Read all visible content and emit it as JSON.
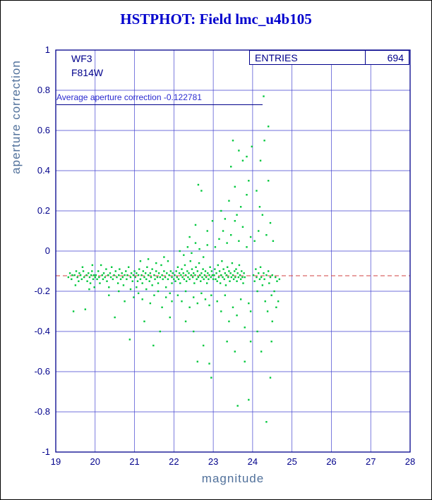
{
  "title": "HSTPHOT: Field lmc_u4b105",
  "colors": {
    "title": "#0000cd",
    "frame": "#00008b",
    "grid": "#4343cf",
    "points": "#00c83c",
    "refline": "#d04040",
    "axis_label": "#51719b",
    "tick_label": "#00008b"
  },
  "chart_data": {
    "type": "scatter",
    "title": "HSTPHOT: Field lmc_u4b105",
    "xlabel": "magnitude",
    "ylabel": "aperture correction",
    "xlim": [
      19,
      28
    ],
    "ylim": [
      -1,
      1
    ],
    "grid": true,
    "x_tick_values": [
      19,
      20,
      21,
      22,
      23,
      24,
      25,
      26,
      27,
      28
    ],
    "x_tick_labels": [
      "19",
      "20",
      "21",
      "22",
      "23",
      "24",
      "25",
      "26",
      "27",
      "28"
    ],
    "y_tick_values": [
      1,
      0.8,
      0.6,
      0.4,
      0.2,
      0,
      -0.2,
      -0.4,
      -0.6,
      -0.8,
      -1
    ],
    "y_tick_labels": [
      "1",
      "0.8",
      "0.6",
      "0.4",
      "0.2",
      "0",
      "-0.2",
      "-0.4",
      "-0.6",
      "-0.8",
      "-1"
    ],
    "chip_label": "WF3",
    "filter_label": "F814W",
    "average_text": "Average aperture correction -0.122781",
    "entries": {
      "label": "ENTRIES",
      "value": "694"
    },
    "reference_line_y": -0.122781,
    "points": [
      [
        19.32,
        -0.13
      ],
      [
        19.36,
        -0.11
      ],
      [
        19.4,
        -0.14
      ],
      [
        19.42,
        -0.12
      ],
      [
        19.45,
        -0.3
      ],
      [
        19.48,
        -0.12
      ],
      [
        19.52,
        -0.1
      ],
      [
        19.55,
        -0.13
      ],
      [
        19.58,
        -0.15
      ],
      [
        19.6,
        -0.11
      ],
      [
        19.63,
        -0.12
      ],
      [
        19.66,
        -0.14
      ],
      [
        19.7,
        -0.1
      ],
      [
        19.72,
        -0.13
      ],
      [
        19.75,
        -0.29
      ],
      [
        19.78,
        -0.12
      ],
      [
        19.8,
        -0.15
      ],
      [
        19.83,
        -0.11
      ],
      [
        19.86,
        -0.13
      ],
      [
        19.88,
        -0.16
      ],
      [
        19.9,
        -0.12
      ],
      [
        19.92,
        -0.1
      ],
      [
        19.95,
        -0.14
      ],
      [
        19.97,
        -0.12
      ],
      [
        20.0,
        -0.13
      ],
      [
        19.5,
        -0.17
      ],
      [
        19.68,
        -0.08
      ],
      [
        19.85,
        -0.19
      ],
      [
        19.93,
        -0.07
      ],
      [
        19.98,
        -0.18
      ],
      [
        20.02,
        -0.12
      ],
      [
        20.05,
        -0.14
      ],
      [
        20.08,
        -0.1
      ],
      [
        20.1,
        -0.13
      ],
      [
        20.12,
        -0.16
      ],
      [
        20.15,
        -0.07
      ],
      [
        20.18,
        -0.12
      ],
      [
        20.2,
        -0.14
      ],
      [
        20.22,
        -0.11
      ],
      [
        20.25,
        -0.13
      ],
      [
        20.28,
        -0.09
      ],
      [
        20.3,
        -0.15
      ],
      [
        20.33,
        -0.12
      ],
      [
        20.35,
        -0.18
      ],
      [
        20.38,
        -0.11
      ],
      [
        20.4,
        -0.13
      ],
      [
        20.42,
        -0.08
      ],
      [
        20.45,
        -0.14
      ],
      [
        20.48,
        -0.12
      ],
      [
        20.5,
        -0.33
      ],
      [
        20.52,
        -0.1
      ],
      [
        20.55,
        -0.13
      ],
      [
        20.58,
        -0.16
      ],
      [
        20.6,
        -0.12
      ],
      [
        20.62,
        -0.09
      ],
      [
        20.65,
        -0.14
      ],
      [
        20.68,
        -0.11
      ],
      [
        20.7,
        -0.13
      ],
      [
        20.72,
        -0.17
      ],
      [
        20.75,
        -0.12
      ],
      [
        20.78,
        -0.1
      ],
      [
        20.8,
        -0.14
      ],
      [
        20.82,
        -0.12
      ],
      [
        20.85,
        -0.08
      ],
      [
        20.88,
        -0.44
      ],
      [
        20.9,
        -0.13
      ],
      [
        20.92,
        -0.11
      ],
      [
        20.95,
        -0.15
      ],
      [
        20.97,
        -0.12
      ],
      [
        21.0,
        -0.1
      ],
      [
        20.35,
        -0.22
      ],
      [
        20.6,
        -0.2
      ],
      [
        20.75,
        -0.25
      ],
      [
        20.9,
        -0.19
      ],
      [
        20.98,
        -0.23
      ],
      [
        21.02,
        -0.13
      ],
      [
        21.05,
        -0.11
      ],
      [
        21.08,
        -0.15
      ],
      [
        21.1,
        -0.12
      ],
      [
        21.12,
        -0.09
      ],
      [
        21.15,
        -0.14
      ],
      [
        21.18,
        -0.12
      ],
      [
        21.2,
        -0.16
      ],
      [
        21.22,
        -0.1
      ],
      [
        21.25,
        -0.13
      ],
      [
        21.28,
        -0.11
      ],
      [
        21.3,
        -0.14
      ],
      [
        21.32,
        -0.08
      ],
      [
        21.35,
        -0.12
      ],
      [
        21.38,
        -0.15
      ],
      [
        21.4,
        -0.11
      ],
      [
        21.42,
        -0.13
      ],
      [
        21.45,
        -0.09
      ],
      [
        21.48,
        -0.47
      ],
      [
        21.5,
        -0.12
      ],
      [
        21.52,
        -0.14
      ],
      [
        21.55,
        -0.1
      ],
      [
        21.58,
        -0.13
      ],
      [
        21.6,
        -0.16
      ],
      [
        21.62,
        -0.11
      ],
      [
        21.65,
        -0.13
      ],
      [
        21.68,
        -0.07
      ],
      [
        21.7,
        -0.12
      ],
      [
        21.72,
        -0.14
      ],
      [
        21.75,
        -0.1
      ],
      [
        21.78,
        -0.13
      ],
      [
        21.8,
        -0.18
      ],
      [
        21.82,
        -0.11
      ],
      [
        21.85,
        -0.14
      ],
      [
        21.88,
        -0.12
      ],
      [
        21.9,
        -0.33
      ],
      [
        21.92,
        -0.1
      ],
      [
        21.95,
        -0.13
      ],
      [
        21.97,
        -0.11
      ],
      [
        22.0,
        -0.14
      ],
      [
        21.1,
        -0.21
      ],
      [
        21.2,
        -0.24
      ],
      [
        21.3,
        -0.19
      ],
      [
        21.4,
        -0.26
      ],
      [
        21.5,
        -0.22
      ],
      [
        21.6,
        -0.2
      ],
      [
        21.7,
        -0.28
      ],
      [
        21.8,
        -0.23
      ],
      [
        21.9,
        -0.21
      ],
      [
        21.95,
        -0.25
      ],
      [
        21.15,
        -0.05
      ],
      [
        21.35,
        -0.04
      ],
      [
        21.55,
        -0.06
      ],
      [
        21.75,
        -0.03
      ],
      [
        21.85,
        -0.05
      ],
      [
        21.25,
        -0.35
      ],
      [
        21.65,
        -0.4
      ],
      [
        21.45,
        -0.17
      ],
      [
        21.05,
        -0.18
      ],
      [
        21.95,
        -0.16
      ],
      [
        22.02,
        -0.12
      ],
      [
        22.04,
        -0.15
      ],
      [
        22.06,
        -0.1
      ],
      [
        22.08,
        -0.13
      ],
      [
        22.1,
        -0.08
      ],
      [
        22.12,
        -0.14
      ],
      [
        22.14,
        -0.11
      ],
      [
        22.16,
        -0.16
      ],
      [
        22.18,
        -0.12
      ],
      [
        22.2,
        -0.09
      ],
      [
        22.22,
        -0.13
      ],
      [
        22.24,
        -0.11
      ],
      [
        22.26,
        -0.14
      ],
      [
        22.28,
        -0.07
      ],
      [
        22.3,
        -0.12
      ],
      [
        22.32,
        -0.15
      ],
      [
        22.34,
        -0.1
      ],
      [
        22.36,
        -0.13
      ],
      [
        22.38,
        -0.11
      ],
      [
        22.4,
        -0.14
      ],
      [
        22.42,
        -0.05
      ],
      [
        22.44,
        -0.12
      ],
      [
        22.46,
        -0.09
      ],
      [
        22.48,
        -0.13
      ],
      [
        22.5,
        -0.11
      ],
      [
        22.52,
        -0.16
      ],
      [
        22.54,
        -0.12
      ],
      [
        22.56,
        -0.08
      ],
      [
        22.58,
        -0.14
      ],
      [
        22.6,
        -0.1
      ],
      [
        22.62,
        -0.13
      ],
      [
        22.64,
        -0.06
      ],
      [
        22.66,
        -0.12
      ],
      [
        22.68,
        -0.15
      ],
      [
        22.7,
        -0.11
      ],
      [
        22.72,
        -0.13
      ],
      [
        22.74,
        -0.09
      ],
      [
        22.76,
        -0.14
      ],
      [
        22.78,
        -0.12
      ],
      [
        22.8,
        -0.1
      ],
      [
        22.82,
        -0.13
      ],
      [
        22.84,
        -0.16
      ],
      [
        22.86,
        -0.11
      ],
      [
        22.88,
        -0.14
      ],
      [
        22.9,
        -0.12
      ],
      [
        22.92,
        -0.08
      ],
      [
        22.94,
        -0.13
      ],
      [
        22.96,
        -0.1
      ],
      [
        22.98,
        -0.12
      ],
      [
        23.0,
        -0.14
      ],
      [
        22.1,
        -0.22
      ],
      [
        22.2,
        -0.25
      ],
      [
        22.3,
        -0.2
      ],
      [
        22.4,
        -0.28
      ],
      [
        22.5,
        -0.23
      ],
      [
        22.6,
        -0.26
      ],
      [
        22.7,
        -0.21
      ],
      [
        22.8,
        -0.24
      ],
      [
        22.9,
        -0.27
      ],
      [
        22.95,
        -0.22
      ],
      [
        22.15,
        0.0
      ],
      [
        22.25,
        -0.02
      ],
      [
        22.35,
        0.02
      ],
      [
        22.45,
        -0.01
      ],
      [
        22.55,
        0.04
      ],
      [
        22.65,
        0.01
      ],
      [
        22.75,
        -0.03
      ],
      [
        22.85,
        0.03
      ],
      [
        22.3,
        -0.35
      ],
      [
        22.5,
        -0.4
      ],
      [
        22.6,
        -0.55
      ],
      [
        22.75,
        -0.47
      ],
      [
        22.9,
        -0.56
      ],
      [
        22.95,
        -0.63
      ],
      [
        22.55,
        0.13
      ],
      [
        22.7,
        0.3
      ],
      [
        22.62,
        0.33
      ],
      [
        22.85,
        0.1
      ],
      [
        22.4,
        0.07
      ],
      [
        22.98,
        0.15
      ],
      [
        23.02,
        -0.12
      ],
      [
        23.04,
        -0.09
      ],
      [
        23.06,
        -0.14
      ],
      [
        23.08,
        -0.11
      ],
      [
        23.1,
        -0.15
      ],
      [
        23.12,
        -0.07
      ],
      [
        23.14,
        -0.13
      ],
      [
        23.16,
        -0.1
      ],
      [
        23.18,
        -0.16
      ],
      [
        23.2,
        -0.12
      ],
      [
        23.22,
        -0.05
      ],
      [
        23.24,
        -0.13
      ],
      [
        23.26,
        -0.09
      ],
      [
        23.28,
        -0.14
      ],
      [
        23.3,
        -0.11
      ],
      [
        23.32,
        -0.17
      ],
      [
        23.34,
        -0.12
      ],
      [
        23.36,
        -0.08
      ],
      [
        23.38,
        -0.13
      ],
      [
        23.4,
        -0.1
      ],
      [
        23.42,
        -0.15
      ],
      [
        23.44,
        -0.11
      ],
      [
        23.46,
        -0.13
      ],
      [
        23.48,
        -0.06
      ],
      [
        23.5,
        -0.12
      ],
      [
        23.52,
        -0.14
      ],
      [
        23.54,
        -0.1
      ],
      [
        23.56,
        -0.13
      ],
      [
        23.58,
        -0.09
      ],
      [
        23.6,
        -0.15
      ],
      [
        23.62,
        -0.11
      ],
      [
        23.64,
        -0.13
      ],
      [
        23.66,
        -0.07
      ],
      [
        23.68,
        -0.12
      ],
      [
        23.7,
        -0.14
      ],
      [
        23.72,
        -0.1
      ],
      [
        23.74,
        -0.13
      ],
      [
        23.76,
        -0.16
      ],
      [
        23.78,
        -0.11
      ],
      [
        23.8,
        -0.13
      ],
      [
        23.1,
        -0.25
      ],
      [
        23.2,
        -0.3
      ],
      [
        23.3,
        -0.22
      ],
      [
        23.4,
        -0.35
      ],
      [
        23.5,
        -0.28
      ],
      [
        23.6,
        -0.32
      ],
      [
        23.7,
        -0.24
      ],
      [
        23.8,
        -0.38
      ],
      [
        23.9,
        -0.26
      ],
      [
        23.95,
        -0.3
      ],
      [
        23.05,
        0.02
      ],
      [
        23.15,
        0.06
      ],
      [
        23.25,
        0.1
      ],
      [
        23.35,
        0.04
      ],
      [
        23.45,
        0.08
      ],
      [
        23.55,
        0.15
      ],
      [
        23.65,
        0.05
      ],
      [
        23.75,
        0.12
      ],
      [
        23.85,
        0.02
      ],
      [
        23.95,
        0.07
      ],
      [
        23.2,
        0.2
      ],
      [
        23.4,
        0.25
      ],
      [
        23.55,
        0.32
      ],
      [
        23.7,
        0.22
      ],
      [
        23.85,
        0.28
      ],
      [
        23.3,
        0.16
      ],
      [
        23.6,
        0.18
      ],
      [
        23.9,
        0.35
      ],
      [
        23.45,
        0.42
      ],
      [
        23.75,
        0.45
      ],
      [
        23.5,
        0.55
      ],
      [
        23.65,
        0.5
      ],
      [
        23.35,
        -0.45
      ],
      [
        23.55,
        -0.5
      ],
      [
        23.62,
        -0.77
      ],
      [
        23.9,
        -0.74
      ],
      [
        23.8,
        -0.55
      ],
      [
        23.95,
        -0.45
      ],
      [
        23.85,
        0.47
      ],
      [
        23.98,
        0.52
      ],
      [
        24.02,
        -0.12
      ],
      [
        24.05,
        -0.15
      ],
      [
        24.08,
        -0.09
      ],
      [
        24.1,
        -0.13
      ],
      [
        24.12,
        -0.2
      ],
      [
        24.15,
        -0.11
      ],
      [
        24.18,
        -0.14
      ],
      [
        24.2,
        -0.08
      ],
      [
        24.22,
        -0.13
      ],
      [
        24.25,
        -0.17
      ],
      [
        24.28,
        -0.11
      ],
      [
        24.3,
        -0.14
      ],
      [
        24.32,
        -0.25
      ],
      [
        24.35,
        -0.12
      ],
      [
        24.38,
        -0.3
      ],
      [
        24.4,
        -0.1
      ],
      [
        24.42,
        -0.16
      ],
      [
        24.45,
        -0.13
      ],
      [
        24.48,
        -0.22
      ],
      [
        24.5,
        -0.12
      ],
      [
        24.05,
        0.05
      ],
      [
        24.15,
        0.1
      ],
      [
        24.25,
        0.18
      ],
      [
        24.35,
        0.08
      ],
      [
        24.45,
        0.14
      ],
      [
        24.1,
        0.3
      ],
      [
        24.2,
        0.45
      ],
      [
        24.3,
        0.55
      ],
      [
        24.4,
        0.35
      ],
      [
        24.28,
        0.77
      ],
      [
        24.12,
        -0.4
      ],
      [
        24.22,
        -0.5
      ],
      [
        24.35,
        -0.85
      ],
      [
        24.45,
        -0.63
      ],
      [
        24.5,
        -0.35
      ],
      [
        24.55,
        -0.2
      ],
      [
        24.58,
        -0.13
      ],
      [
        24.6,
        -0.28
      ],
      [
        24.62,
        -0.15
      ],
      [
        24.65,
        -0.25
      ],
      [
        24.4,
        0.62
      ],
      [
        24.18,
        0.22
      ],
      [
        24.48,
        -0.45
      ],
      [
        24.52,
        0.05
      ],
      [
        24.68,
        -0.14
      ]
    ]
  }
}
